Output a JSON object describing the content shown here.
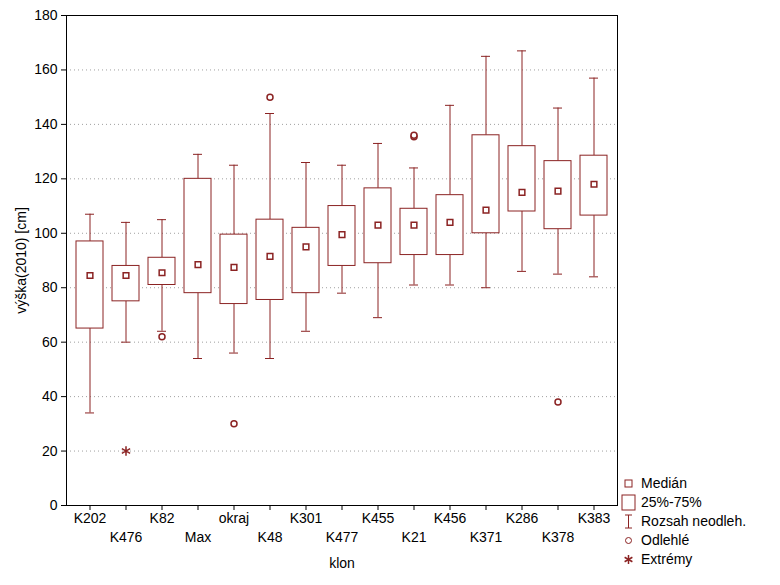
{
  "chart_data": {
    "type": "box",
    "y_label": "výška(2010) [cm]",
    "x_label": "klon",
    "categories": [
      "K202",
      "K476",
      "K82",
      "Max",
      "okraj",
      "K48",
      "K301",
      "K477",
      "K455",
      "K21",
      "K456",
      "K371",
      "K286",
      "K378",
      "K383"
    ],
    "median": [
      84.5,
      84.5,
      85.5,
      88.5,
      87.5,
      91.5,
      95,
      99.5,
      103,
      103,
      104,
      108.5,
      115,
      115.5,
      118
    ],
    "q1": [
      65,
      75,
      81,
      78,
      74,
      75.5,
      78,
      88,
      89,
      92,
      92,
      100,
      108,
      101.5,
      106.5
    ],
    "q3": [
      97,
      88,
      91,
      120,
      99.5,
      105,
      102,
      110,
      116.5,
      109,
      114,
      136,
      132,
      126.5,
      128.5
    ],
    "whisker_low": [
      34,
      60,
      64,
      54,
      56,
      54,
      64,
      78,
      69,
      81,
      81,
      80,
      86,
      85,
      84
    ],
    "whisker_high": [
      107,
      104,
      105,
      129,
      125,
      144,
      126,
      125,
      133,
      124,
      147,
      165,
      167,
      146,
      157
    ],
    "outliers": [
      [],
      [],
      [
        62
      ],
      [],
      [
        30
      ],
      [
        150
      ],
      [],
      [],
      [],
      [
        135.5,
        136
      ],
      [],
      [],
      [],
      [
        38
      ],
      []
    ],
    "extremes": [
      [],
      [
        20
      ],
      [],
      [],
      [],
      [],
      [],
      [],
      [],
      [],
      [],
      [],
      [],
      [],
      []
    ],
    "ylim": [
      0,
      180
    ],
    "yticks": [
      0,
      20,
      40,
      60,
      80,
      100,
      120,
      140,
      160,
      180
    ],
    "grid": true,
    "color": "#8b2323",
    "legend": "bottom-right",
    "legend_entries": [
      "Medián",
      "25%-75%",
      "Rozsah neodleh.",
      "Odlehlé",
      "Extrémy"
    ]
  }
}
